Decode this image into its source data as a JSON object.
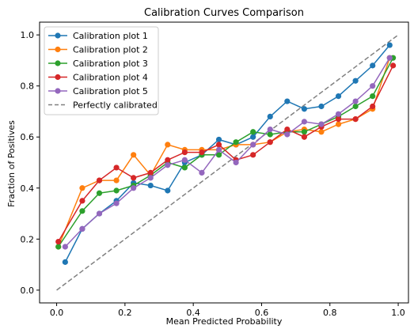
{
  "chart_data": {
    "type": "line",
    "title": "Calibration Curves Comparison",
    "xlabel": "Mean Predicted Probability",
    "ylabel": "Fraction of Positives",
    "xlim": [
      -0.05,
      1.03
    ],
    "ylim": [
      -0.05,
      1.05
    ],
    "xticks": [
      "0.0",
      "0.2",
      "0.4",
      "0.6",
      "0.8",
      "1.0"
    ],
    "yticks": [
      "0.0",
      "0.2",
      "0.4",
      "0.6",
      "0.8",
      "1.0"
    ],
    "grid": false,
    "legend_position": "top-left",
    "series": [
      {
        "name": "Calibration plot 1",
        "color": "#1f77b4",
        "x": [
          0.025,
          0.075,
          0.125,
          0.175,
          0.225,
          0.275,
          0.325,
          0.375,
          0.425,
          0.475,
          0.525,
          0.575,
          0.625,
          0.675,
          0.725,
          0.775,
          0.825,
          0.875,
          0.925,
          0.975
        ],
        "y": [
          0.11,
          0.24,
          0.3,
          0.35,
          0.42,
          0.41,
          0.39,
          0.5,
          0.53,
          0.59,
          0.57,
          0.6,
          0.68,
          0.74,
          0.71,
          0.72,
          0.76,
          0.82,
          0.88,
          0.96
        ]
      },
      {
        "name": "Calibration plot 2",
        "color": "#ff7f0e",
        "x": [
          0.005,
          0.075,
          0.125,
          0.175,
          0.225,
          0.275,
          0.325,
          0.375,
          0.425,
          0.475,
          0.525,
          0.575,
          0.625,
          0.675,
          0.725,
          0.775,
          0.825,
          0.875,
          0.925,
          0.975
        ],
        "y": [
          0.17,
          0.4,
          0.43,
          0.43,
          0.53,
          0.45,
          0.57,
          0.55,
          0.55,
          0.55,
          0.57,
          0.57,
          0.58,
          0.62,
          0.63,
          0.62,
          0.65,
          0.67,
          0.71,
          0.91
        ]
      },
      {
        "name": "Calibration plot 3",
        "color": "#2ca02c",
        "x": [
          0.005,
          0.075,
          0.125,
          0.175,
          0.225,
          0.275,
          0.325,
          0.375,
          0.425,
          0.475,
          0.525,
          0.575,
          0.625,
          0.675,
          0.725,
          0.775,
          0.825,
          0.875,
          0.925,
          0.985
        ],
        "y": [
          0.17,
          0.31,
          0.38,
          0.39,
          0.41,
          0.45,
          0.5,
          0.48,
          0.53,
          0.53,
          0.58,
          0.62,
          0.61,
          0.62,
          0.62,
          0.65,
          0.68,
          0.72,
          0.76,
          0.91
        ]
      },
      {
        "name": "Calibration plot 4",
        "color": "#d62728",
        "x": [
          0.005,
          0.075,
          0.125,
          0.175,
          0.225,
          0.275,
          0.325,
          0.375,
          0.425,
          0.475,
          0.525,
          0.575,
          0.625,
          0.675,
          0.725,
          0.775,
          0.825,
          0.875,
          0.925,
          0.985
        ],
        "y": [
          0.19,
          0.35,
          0.43,
          0.48,
          0.44,
          0.46,
          0.51,
          0.54,
          0.54,
          0.57,
          0.51,
          0.53,
          0.58,
          0.63,
          0.6,
          0.64,
          0.67,
          0.67,
          0.72,
          0.88
        ]
      },
      {
        "name": "Calibration plot 5",
        "color": "#9467bd",
        "x": [
          0.025,
          0.075,
          0.125,
          0.175,
          0.225,
          0.275,
          0.325,
          0.375,
          0.425,
          0.475,
          0.525,
          0.575,
          0.625,
          0.675,
          0.725,
          0.775,
          0.825,
          0.875,
          0.925,
          0.975
        ],
        "y": [
          0.17,
          0.24,
          0.3,
          0.34,
          0.4,
          0.44,
          0.49,
          0.51,
          0.46,
          0.55,
          0.5,
          0.57,
          0.63,
          0.61,
          0.66,
          0.65,
          0.69,
          0.74,
          0.8,
          0.91
        ]
      }
    ],
    "reference": {
      "name": "Perfectly calibrated",
      "color": "#808080",
      "x": [
        0.0,
        1.0
      ],
      "y": [
        0.0,
        1.0
      ]
    }
  }
}
